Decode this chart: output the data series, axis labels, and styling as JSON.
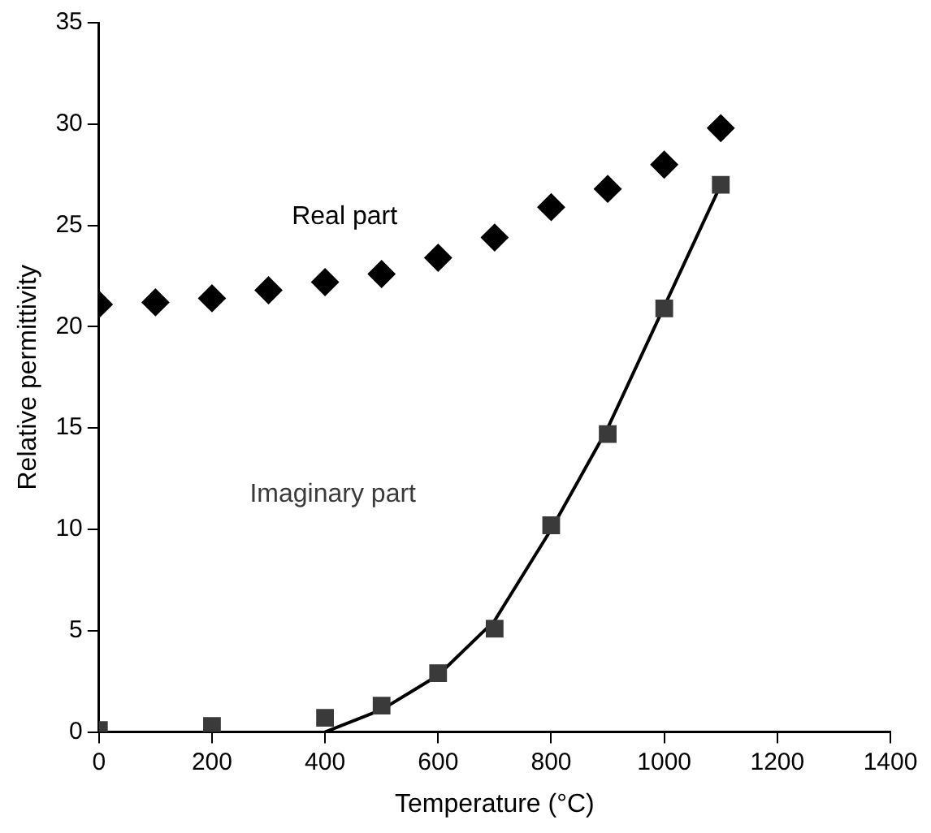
{
  "chart_data": {
    "type": "scatter",
    "xlabel": "Temperature (°C)",
    "ylabel": "Relative permittivity",
    "xlim": [
      0,
      1400
    ],
    "xticks": [
      0,
      200,
      400,
      600,
      800,
      1000,
      1200,
      1400
    ],
    "ylim": [
      0,
      35
    ],
    "yticks": [
      0,
      5,
      10,
      15,
      20,
      25,
      30,
      35
    ],
    "grid": false,
    "legend": false,
    "series": [
      {
        "name": "Real part",
        "marker": "diamond",
        "color": "#000000",
        "x": [
          0,
          100,
          200,
          300,
          400,
          500,
          600,
          700,
          800,
          900,
          1000,
          1100
        ],
        "values": [
          21.1,
          21.2,
          21.4,
          21.8,
          22.2,
          22.6,
          23.4,
          24.4,
          25.9,
          26.8,
          28.0,
          29.8
        ]
      },
      {
        "name": "Imaginary part",
        "marker": "square",
        "color": "#3a3a3a",
        "x": [
          0,
          200,
          400,
          500,
          600,
          700,
          800,
          900,
          1000,
          1100
        ],
        "values": [
          0.1,
          0.3,
          0.7,
          1.3,
          2.9,
          5.1,
          10.2,
          14.7,
          20.9,
          27.0
        ]
      },
      {
        "type": "line",
        "marker": "none",
        "line_style": "solid",
        "color": "#000000",
        "x": [
          400,
          500,
          600,
          700,
          800,
          900,
          1000,
          1100
        ],
        "values": [
          0,
          1.1,
          2.8,
          5.5,
          10.0,
          15.0,
          21.0,
          27.0
        ]
      }
    ]
  }
}
